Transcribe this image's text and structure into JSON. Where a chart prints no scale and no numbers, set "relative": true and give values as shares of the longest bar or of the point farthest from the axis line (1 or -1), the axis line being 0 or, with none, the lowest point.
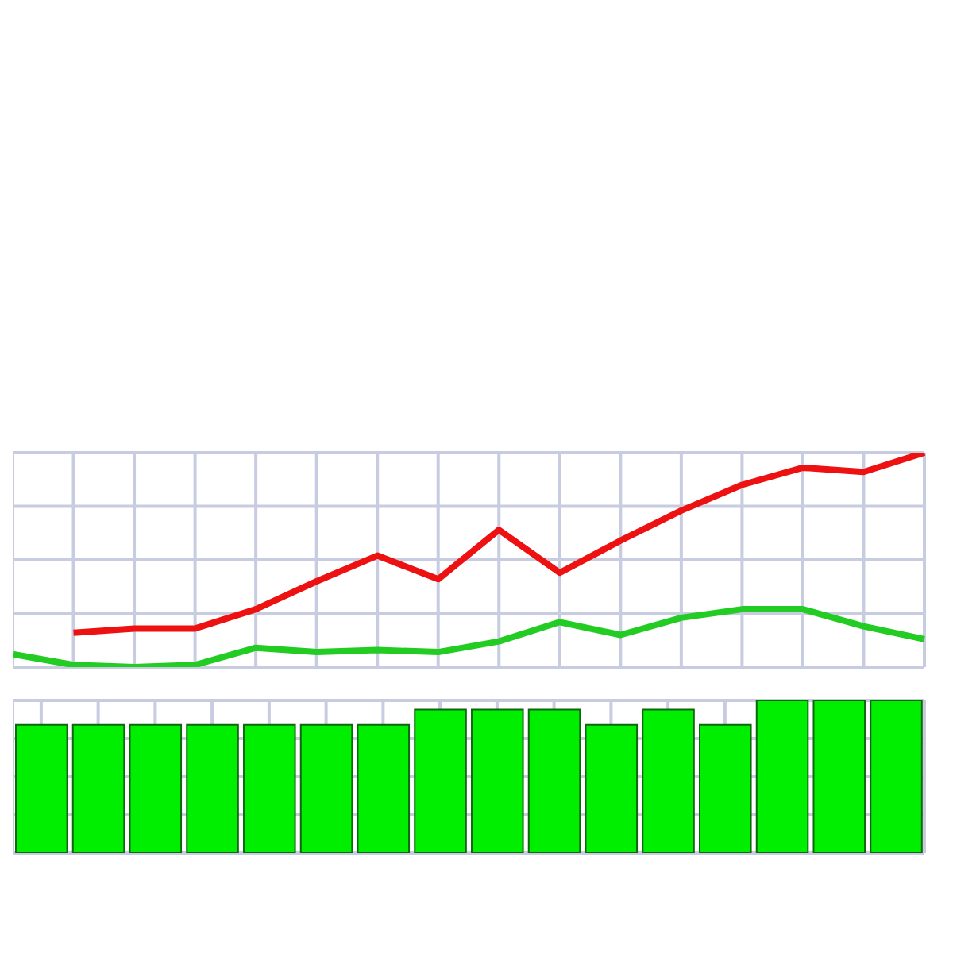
{
  "chart_data": [
    {
      "type": "bar",
      "relative": true,
      "grid": true,
      "tick_labels": false,
      "color": "#00ee00",
      "categories": [
        null,
        null,
        null,
        null,
        null,
        null,
        null,
        null,
        null,
        null,
        null,
        null,
        null,
        null,
        null,
        null
      ],
      "values": [
        0.84,
        0.84,
        0.84,
        0.84,
        0.84,
        0.84,
        0.84,
        0.94,
        0.94,
        0.94,
        0.84,
        0.94,
        0.84,
        1,
        1,
        1
      ]
    },
    {
      "type": "line",
      "relative": true,
      "grid": true,
      "tick_labels": false,
      "marker": "none",
      "categories": [
        null,
        null,
        null,
        null,
        null,
        null,
        null,
        null,
        null,
        null,
        null,
        null,
        null,
        null,
        null,
        null
      ],
      "series": [
        {
          "color": "#ee1111",
          "values": [
            null,
            0.16,
            0.18,
            0.18,
            0.27,
            0.4,
            0.52,
            0.41,
            0.64,
            0.44,
            0.59,
            0.73,
            0.85,
            0.93,
            0.91,
            1
          ]
        },
        {
          "color": "#22cc22",
          "values": [
            0.06,
            0.01,
            0,
            0.01,
            0.09,
            0.07,
            0.08,
            0.07,
            0.12,
            0.21,
            0.15,
            0.23,
            0.27,
            0.27,
            0.19,
            0.13
          ]
        }
      ]
    }
  ]
}
